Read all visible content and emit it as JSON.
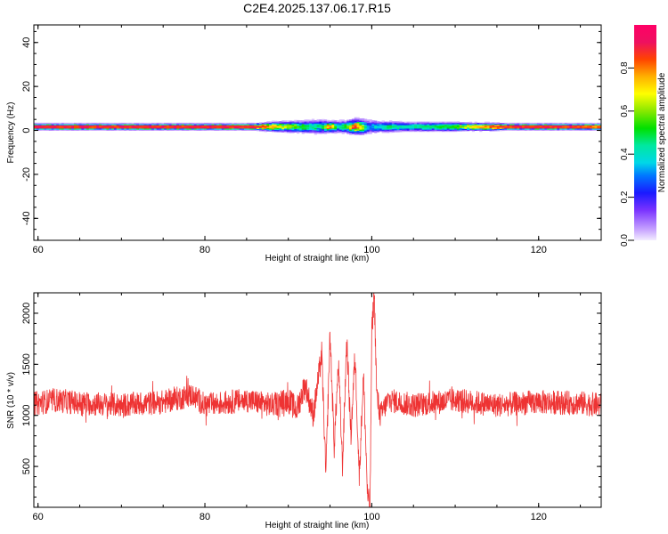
{
  "title": "C2E4.2025.137.06.17.R15",
  "chart_data": [
    {
      "type": "heatmap",
      "xlabel": "Height of straight line (km)",
      "ylabel": "Frequency (Hz)",
      "xlim": [
        59.5,
        127.5
      ],
      "ylim": [
        -50,
        48
      ],
      "xticks": [
        60,
        80,
        100,
        120
      ],
      "yticks": [
        -40,
        -20,
        0,
        20,
        40
      ],
      "colorbar": {
        "label": "Normalized spectral amplitude",
        "range": [
          0,
          1
        ],
        "ticks": [
          "0.0",
          "0.2",
          "0.4",
          "0.6",
          "0.8"
        ]
      },
      "band_center_hz": 1.5,
      "band": {
        "height_km": [
          60,
          70,
          80,
          86,
          88,
          90,
          92,
          94,
          95,
          96,
          97,
          98,
          99,
          99.5,
          100,
          100.5,
          101,
          102,
          104,
          106,
          108,
          110,
          112,
          114,
          116,
          118,
          120,
          122,
          124,
          126,
          127.5
        ],
        "peak_amplitude": [
          0.92,
          0.9,
          0.92,
          0.9,
          0.78,
          0.62,
          0.5,
          0.45,
          0.85,
          0.4,
          0.55,
          0.88,
          0.62,
          0.35,
          0.28,
          0.42,
          0.35,
          0.48,
          0.42,
          0.45,
          0.5,
          0.52,
          0.7,
          0.8,
          0.88,
          0.9,
          0.92,
          0.9,
          0.88,
          0.85,
          0.82
        ],
        "halfwidth_hz": [
          1.5,
          1.5,
          1.5,
          1.5,
          2.5,
          3,
          3.5,
          4,
          3,
          3.5,
          3.5,
          4.5,
          4.5,
          4,
          4,
          3.5,
          3,
          3,
          2.5,
          2.5,
          2.5,
          2.5,
          2,
          2,
          1.5,
          1.5,
          1.5,
          1.5,
          1.5,
          1.5,
          1.5
        ]
      }
    },
    {
      "type": "line",
      "xlabel": "Height of straight line (km)",
      "ylabel": "SNR (10 * v/v)",
      "xlim": [
        59.5,
        127.5
      ],
      "ylim": [
        100,
        2200
      ],
      "xticks": [
        60,
        80,
        100,
        120
      ],
      "yticks": [
        500,
        1000,
        1500,
        2000
      ],
      "color": "#ee3333",
      "baseline": 1120,
      "series": [
        {
          "x": [
            60,
            62,
            65,
            70,
            75,
            78.5,
            80,
            85,
            88,
            90,
            91,
            92,
            93,
            94,
            94.5,
            95,
            95.5,
            96,
            96.5,
            97,
            97.5,
            98,
            98.5,
            99,
            99.5,
            99.8,
            100,
            100.3,
            100.6,
            101,
            102,
            105,
            110,
            115,
            120,
            125,
            127.5
          ],
          "y": [
            1120,
            1150,
            1120,
            1100,
            1130,
            1200,
            1100,
            1150,
            1100,
            1150,
            1050,
            1300,
            1000,
            1600,
            400,
            1800,
            700,
            1500,
            500,
            1750,
            800,
            1600,
            400,
            1400,
            200,
            100,
            1800,
            2200,
            1200,
            1000,
            1150,
            1100,
            1150,
            1100,
            1130,
            1120,
            1100
          ]
        }
      ]
    }
  ]
}
